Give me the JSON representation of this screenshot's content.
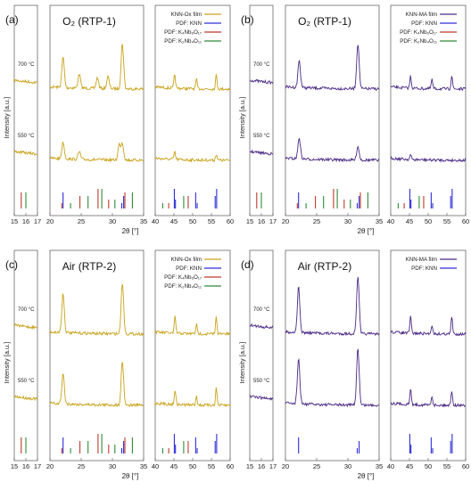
{
  "figure": {
    "panels": [
      {
        "label": "(a)",
        "title": "O₂ (RTP-1)",
        "film": "KNN-Ox film",
        "line_color": "#c9a21a",
        "temps": [
          "700 °C",
          "550 °C"
        ],
        "legend": [
          "KNN-Ox film",
          "PDF: KNN",
          "PDF: K₄Nb₆O₁₇",
          "PDF: K₂Nb₄O₁₁"
        ],
        "ylabel": "Intensity [a.u.]",
        "xlabel": "2θ [°]"
      },
      {
        "label": "(b)",
        "title": "O₂ (RTP-1)",
        "film": "KNN-MA film",
        "line_color": "#4b2a86",
        "temps": [
          "700 °C",
          "550 °C"
        ],
        "legend": [
          "KNN-MA film",
          "PDF: KNN",
          "PDF: K₄Nb₆O₁₇",
          "PDF: K₂Nb₄O₁₁"
        ],
        "ylabel": "Intensity [a.u.]",
        "xlabel": "2θ [°]"
      },
      {
        "label": "(c)",
        "title": "Air (RTP-2)",
        "film": "KNN-Ox film",
        "line_color": "#c9a21a",
        "temps": [
          "700 °C",
          "550 °C"
        ],
        "legend": [
          "KNN-Ox film",
          "PDF: KNN",
          "PDF: K₄Nb₆O₁₇",
          "PDF: K₂Nb₄O₁₁"
        ],
        "ylabel": "Intensity [a.u.]",
        "xlabel": "2θ [°]"
      },
      {
        "label": "(d)",
        "title": "Air (RTP-2)",
        "film": "KNN-MA film",
        "line_color": "#4b2a86",
        "temps": [
          "700 °C",
          "550 °C"
        ],
        "legend": [
          "KNN-MA film",
          "PDF: KNN"
        ],
        "ylabel": "Intensity [a.u.]",
        "xlabel": "2θ [°]"
      }
    ]
  },
  "chart_data": [
    {
      "type": "line",
      "panel": "(a)",
      "title": "O₂ (RTP-1)",
      "xlabel": "2θ [°]",
      "ylabel": "Intensity [a.u.]",
      "x_segments": [
        [
          15,
          17
        ],
        [
          20,
          35
        ],
        [
          40,
          60
        ]
      ],
      "x_ticks": [
        [
          15,
          16,
          17
        ],
        [
          20,
          25,
          30,
          35
        ],
        [
          40,
          45,
          50,
          55,
          60
        ]
      ],
      "series": [
        {
          "name": "700 °C",
          "color": "#c9a21a",
          "peaks_2theta": [
            22.1,
            24.7,
            27.6,
            29.3,
            31.6,
            45.2,
            51.0,
            56.3
          ]
        },
        {
          "name": "550 °C",
          "color": "#c9a21a",
          "peaks_2theta": [
            22.1,
            24.7,
            31.1,
            31.6,
            45.2,
            56.3
          ]
        }
      ],
      "reference_lines": {
        "PDF: KNN": [
          22.1,
          31.5,
          31.8,
          45.1,
          45.4,
          50.8,
          51.2,
          56.0,
          56.4
        ],
        "PDF: K₄Nb₆O₁₇": [
          15.6,
          21.9,
          24.8,
          27.7,
          29.4,
          32.0,
          43.6,
          48.8
        ],
        "PDF: K₂Nb₄O₁₁": [
          16.0,
          23.3,
          26.1,
          28.3,
          30.4,
          33.2,
          42.0,
          47.6
        ]
      }
    },
    {
      "type": "line",
      "panel": "(b)",
      "title": "O₂ (RTP-1)",
      "xlabel": "2θ [°]",
      "ylabel": "Intensity [a.u.]",
      "x_segments": [
        [
          15,
          17
        ],
        [
          20,
          35
        ],
        [
          40,
          60
        ]
      ],
      "x_ticks": [
        [
          15,
          16,
          17
        ],
        [
          20,
          25,
          30,
          35
        ],
        [
          40,
          45,
          50,
          55,
          60
        ]
      ],
      "series": [
        {
          "name": "700 °C",
          "color": "#4b2a86",
          "peaks_2theta": [
            22.2,
            31.6,
            45.3,
            51.0,
            56.3
          ]
        },
        {
          "name": "550 °C",
          "color": "#4b2a86",
          "peaks_2theta": [
            22.2,
            31.6,
            45.3
          ]
        }
      ],
      "reference_lines": {
        "PDF: KNN": [
          22.1,
          31.5,
          31.8,
          45.1,
          45.4,
          50.8,
          51.2,
          56.0,
          56.4
        ],
        "PDF: K₄Nb₆O₁₇": [
          15.6,
          21.9,
          24.8,
          27.7,
          29.4,
          32.0,
          43.6,
          48.8
        ],
        "PDF: K₂Nb₄O₁₁": [
          16.0,
          23.3,
          26.1,
          28.3,
          30.4,
          33.2,
          42.0,
          47.6
        ]
      }
    },
    {
      "type": "line",
      "panel": "(c)",
      "title": "Air (RTP-2)",
      "xlabel": "2θ [°]",
      "ylabel": "Intensity [a.u.]",
      "x_segments": [
        [
          15,
          17
        ],
        [
          20,
          35
        ],
        [
          40,
          60
        ]
      ],
      "x_ticks": [
        [
          15,
          16,
          17
        ],
        [
          20,
          25,
          30,
          35
        ],
        [
          40,
          45,
          50,
          55,
          60
        ]
      ],
      "series": [
        {
          "name": "700 °C",
          "color": "#c9a21a",
          "peaks_2theta": [
            22.1,
            31.6,
            45.3,
            51.0,
            56.3
          ]
        },
        {
          "name": "550 °C",
          "color": "#c9a21a",
          "peaks_2theta": [
            22.1,
            31.6,
            45.3,
            51.0,
            56.3
          ]
        }
      ],
      "reference_lines": {
        "PDF: KNN": [
          22.1,
          31.5,
          31.8,
          45.1,
          45.4,
          50.8,
          51.2,
          56.0,
          56.4
        ],
        "PDF: K₄Nb₆O₁₇": [
          15.6,
          21.9,
          24.8,
          27.7,
          29.4,
          32.0,
          43.6,
          48.8
        ],
        "PDF: K₂Nb₄O₁₁": [
          16.0,
          23.3,
          26.1,
          28.3,
          30.4,
          33.2,
          42.0,
          47.6
        ]
      }
    },
    {
      "type": "line",
      "panel": "(d)",
      "title": "Air (RTP-2)",
      "xlabel": "2θ [°]",
      "ylabel": "Intensity [a.u.]",
      "x_segments": [
        [
          15,
          17
        ],
        [
          20,
          35
        ],
        [
          40,
          60
        ]
      ],
      "x_ticks": [
        [
          15,
          16,
          17
        ],
        [
          20,
          25,
          30,
          35
        ],
        [
          40,
          45,
          50,
          55,
          60
        ]
      ],
      "series": [
        {
          "name": "700 °C",
          "color": "#4b2a86",
          "peaks_2theta": [
            22.1,
            31.6,
            45.3,
            51.0,
            56.3
          ]
        },
        {
          "name": "550 °C",
          "color": "#4b2a86",
          "peaks_2theta": [
            22.1,
            31.6,
            45.3,
            51.0,
            56.3
          ]
        }
      ],
      "reference_lines": {
        "PDF: KNN": [
          22.1,
          31.5,
          31.8,
          45.1,
          45.4,
          50.8,
          51.2,
          56.0,
          56.4
        ]
      }
    }
  ]
}
